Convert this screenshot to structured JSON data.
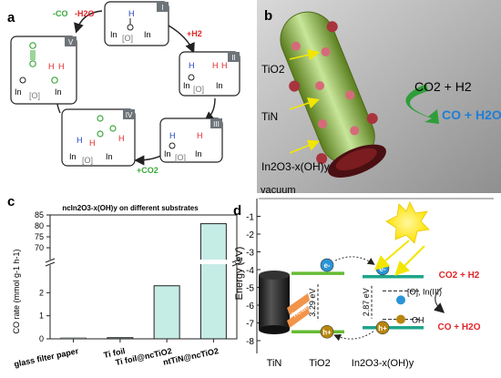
{
  "panels": {
    "a": {
      "letter": "a",
      "steps": [
        "I",
        "II",
        "III",
        "IV",
        "V"
      ],
      "reagents": {
        "h2": "+H2",
        "co2": "+CO2",
        "out_co": "-CO",
        "out_h2o": "-H2O"
      },
      "atoms": {
        "in": "In",
        "o": "[O]",
        "h": "H",
        "c": "C",
        "oxy": "O"
      }
    },
    "b": {
      "letter": "b",
      "labels": [
        "TiO2",
        "TiN",
        "In2O3-x(OH)y"
      ],
      "reaction_top": "CO2 + H2",
      "reaction_bottom": "CO + H2O"
    },
    "c": {
      "letter": "c",
      "title": "ncIn2O3-x(OH)y on different substrates",
      "ylabel": "CO rate (mmol g-1 h-1)",
      "xlabels": [
        "glass filter paper",
        "Ti foil",
        "Ti foil@ncTiO2",
        "ntTiN@ncTiO2"
      ]
    },
    "d": {
      "letter": "d",
      "vacuum": "vacuum",
      "ylabel": "Energy (eV)",
      "gap_tio2": "3.29 eV",
      "gap_in2o3": "2.87 eV",
      "defect_label": "[O], In(III)",
      "oh_label": "OH",
      "heat_label": "heat",
      "electron": "e-",
      "hole": "h+",
      "materials": [
        "TiN",
        "TiO2",
        "In2O3-x(OH)y"
      ],
      "reaction_top": "CO2 + H2",
      "reaction_bottom": "CO + H2O"
    }
  },
  "chart_data": {
    "type": "bar",
    "title": "ncIn2O3-x(OH)y on different substrates",
    "categories": [
      "glass filter paper",
      "Ti foil",
      "Ti foil@ncTiO2",
      "ntTiN@ncTiO2"
    ],
    "values": [
      0.0,
      0.05,
      2.3,
      81
    ],
    "ylabel": "CO rate (mmol g-1 h-1)",
    "ylim_lower": [
      0,
      3
    ],
    "ylim_upper": [
      65,
      85
    ],
    "yticks_lower": [
      0,
      1,
      2
    ],
    "yticks_upper": [
      70,
      75,
      80,
      85
    ],
    "axis_break": true
  },
  "energy_data": {
    "yticks": [
      -1,
      -2,
      -3,
      -4,
      -5,
      -6,
      -7,
      -8
    ],
    "tio2_cb": -4.21,
    "tio2_vb": -7.5,
    "in2o3_cb": -4.4,
    "in2o3_vb": -7.27,
    "defect_level": -5.2,
    "oh_level": -6.8
  },
  "colors": {
    "bar_fill": "#c6ece6",
    "green": "#8dc63f",
    "tio2_band": "#66bb33",
    "in2o3_band": "#1ea58a",
    "red": "#e0262a",
    "blue": "#1e7fd6",
    "sun": "#ffe100",
    "electron": "#2a94d6",
    "hole": "#b8860b"
  }
}
